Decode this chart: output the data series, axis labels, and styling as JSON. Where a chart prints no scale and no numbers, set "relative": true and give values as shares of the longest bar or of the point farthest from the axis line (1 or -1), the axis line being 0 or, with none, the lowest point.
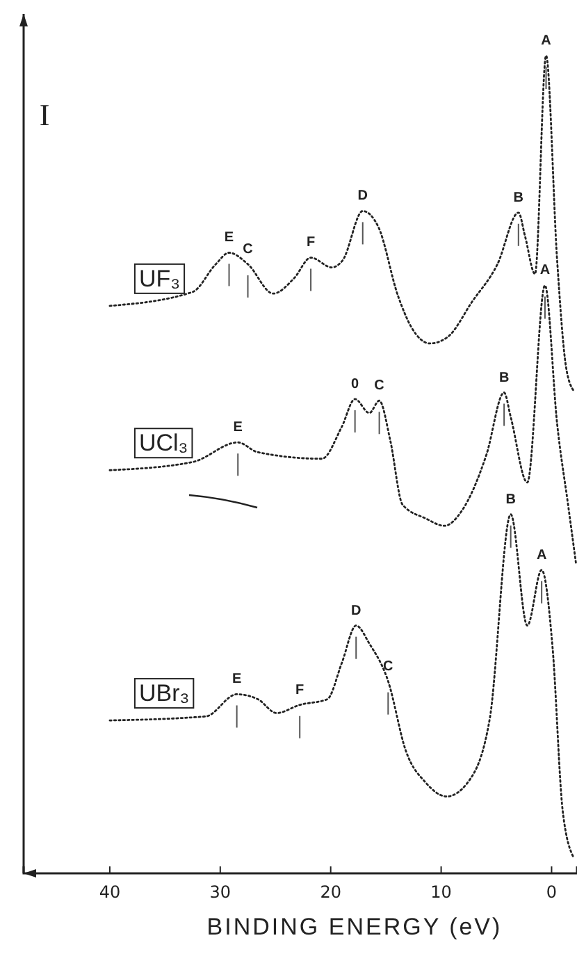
{
  "chart_data": {
    "type": "line",
    "relative": true,
    "xlabel": "BINDING ENERGY (eV)",
    "ylabel": "I",
    "xlim": [
      47.8,
      -2.3
    ],
    "xticks": [
      40,
      30,
      20,
      10,
      0
    ],
    "line_style": "dotted",
    "marker": "none",
    "grid": false,
    "series": [
      {
        "name": "UF₃",
        "color": "#222222",
        "x": [
          40,
          32.5,
          30.4,
          29.2,
          27.5,
          25.2,
          23.3,
          21.8,
          19.9,
          18.9,
          17.1,
          15.7,
          13.9,
          12.7,
          11.0,
          9.4,
          7.2,
          4.9,
          3.0,
          2.4,
          1.5,
          0.5,
          -0.5,
          -1.3,
          -2.0
        ],
        "values": [
          0.694,
          0.711,
          0.745,
          0.759,
          0.745,
          0.709,
          0.728,
          0.753,
          0.741,
          0.75,
          0.81,
          0.791,
          0.706,
          0.668,
          0.648,
          0.656,
          0.699,
          0.745,
          0.808,
          0.779,
          0.733,
          1.0,
          0.75,
          0.62,
          0.59
        ]
      },
      {
        "name": "UCl₃",
        "color": "#222222",
        "x": [
          40,
          32.5,
          28.4,
          26.6,
          20.8,
          19.0,
          17.8,
          16.5,
          15.6,
          14.6,
          13.5,
          11.4,
          9.7,
          8.1,
          5.9,
          4.3,
          3.7,
          2.2,
          0.6,
          -0.5,
          -1.5,
          -2.2
        ],
        "values": [
          0.493,
          0.503,
          0.527,
          0.515,
          0.507,
          0.546,
          0.58,
          0.563,
          0.578,
          0.529,
          0.451,
          0.434,
          0.425,
          0.444,
          0.512,
          0.588,
          0.558,
          0.478,
          0.719,
          0.55,
          0.45,
          0.38
        ]
      },
      {
        "name": "UBr₃",
        "color": "#222222",
        "x": [
          40,
          31.3,
          28.5,
          26.6,
          24.9,
          22.8,
          20.3,
          19.0,
          17.7,
          16.5,
          14.8,
          13.2,
          11.4,
          9.5,
          7.6,
          5.6,
          3.7,
          2.2,
          0.9,
          -0.1,
          -1.0,
          -2.0
        ],
        "values": [
          0.187,
          0.192,
          0.219,
          0.213,
          0.196,
          0.206,
          0.213,
          0.257,
          0.303,
          0.281,
          0.235,
          0.15,
          0.111,
          0.094,
          0.111,
          0.189,
          0.439,
          0.303,
          0.371,
          0.274,
          0.077,
          0.019
        ]
      }
    ],
    "annotations": [
      {
        "text": "A",
        "x": 0.5,
        "y": 1.0
      },
      {
        "text": "B",
        "x": 3.0,
        "y": 0.808
      },
      {
        "text": "D",
        "x": 17.1,
        "y": 0.81
      },
      {
        "text": "F",
        "x": 21.8,
        "y": 0.753
      },
      {
        "text": "C",
        "x": 27.5,
        "y": 0.745
      },
      {
        "text": "E",
        "x": 29.2,
        "y": 0.759
      },
      {
        "text": "A",
        "x": 0.6,
        "y": 0.719
      },
      {
        "text": "B",
        "x": 4.3,
        "y": 0.588
      },
      {
        "text": "0",
        "x": 17.8,
        "y": 0.58
      },
      {
        "text": "C",
        "x": 15.6,
        "y": 0.578
      },
      {
        "text": "E",
        "x": 28.4,
        "y": 0.527
      },
      {
        "text": "A",
        "x": 0.9,
        "y": 0.371
      },
      {
        "text": "B",
        "x": 3.7,
        "y": 0.439
      },
      {
        "text": "D",
        "x": 17.7,
        "y": 0.303
      },
      {
        "text": "C",
        "x": 14.8,
        "y": 0.235
      },
      {
        "text": "F",
        "x": 22.8,
        "y": 0.206
      },
      {
        "text": "E",
        "x": 28.5,
        "y": 0.219
      }
    ]
  }
}
